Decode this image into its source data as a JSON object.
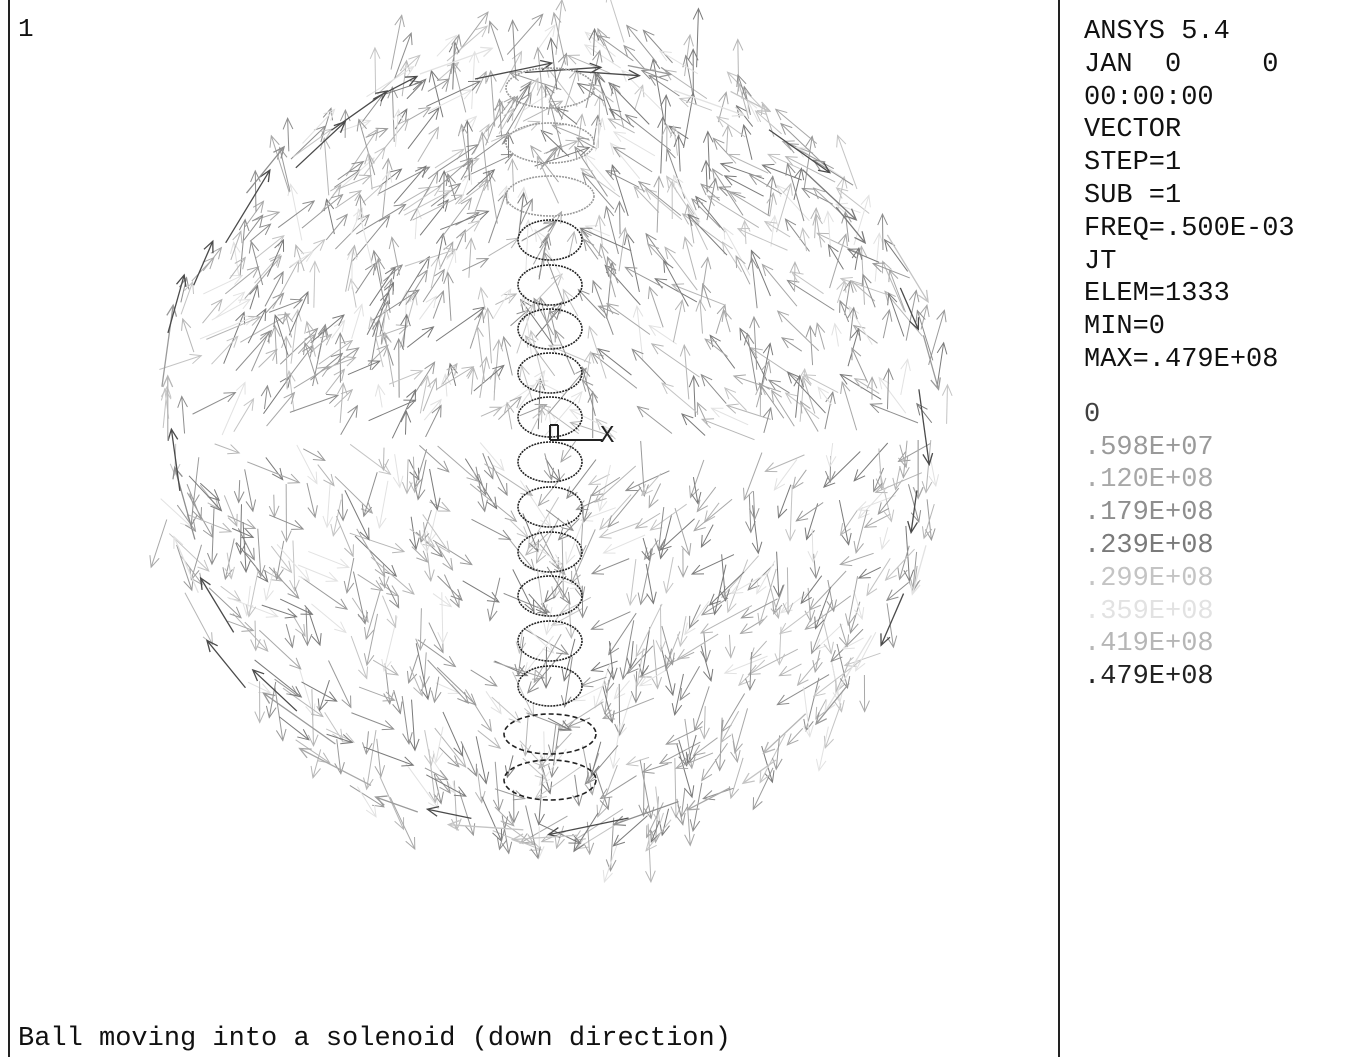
{
  "window": {
    "number": "1",
    "caption": "Ball moving into a solenoid (down direction)"
  },
  "info": {
    "lines": [
      "ANSYS 5.4",
      "JAN  0     0",
      "00:00:00",
      "VECTOR",
      "STEP=1",
      "SUB =1",
      "FREQ=.500E-03",
      "JT",
      "ELEM=1333",
      "MIN=0",
      "MAX=.479E+08"
    ]
  },
  "legend": {
    "entries": [
      {
        "label": "0",
        "color": "#404040"
      },
      {
        "label": ".598E+07",
        "color": "#9a9a9a"
      },
      {
        "label": ".120E+08",
        "color": "#a8a8a8"
      },
      {
        "label": ".179E+08",
        "color": "#8e8e8e"
      },
      {
        "label": ".239E+08",
        "color": "#7a7a7a"
      },
      {
        "label": ".299E+08",
        "color": "#c4c4c4"
      },
      {
        "label": ".359E+08",
        "color": "#e2e2e2"
      },
      {
        "label": ".419E+08",
        "color": "#b6b6b6"
      },
      {
        "label": ".479E+08",
        "color": "#222222"
      }
    ]
  },
  "axis": {
    "label": "X"
  }
}
